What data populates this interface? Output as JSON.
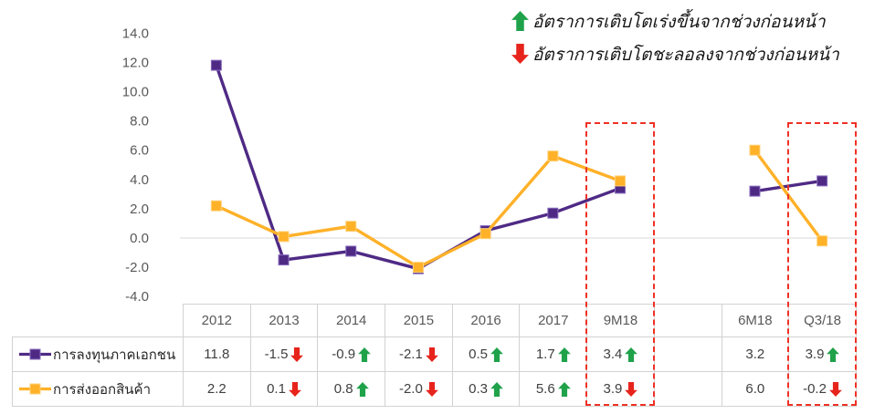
{
  "legend_flags": {
    "up_label": "อัตราการเติบโตเร่งขึ้นจากช่วงก่อนหน้า",
    "down_label": "อัตราการเติบโตชะลอลงจากช่วงก่อนหน้า"
  },
  "colors": {
    "purple": "#4F2A85",
    "purple_marker_border": "#8A6FBF",
    "yellow": "#FFB128",
    "yellow_marker_border": "#FFD279",
    "green": "#1FA24A",
    "red": "#E6241C",
    "highlight_box": "#EF3125",
    "gridline": "#D9D9D9",
    "table_border": "#D2D2D2",
    "axis_text": "#595959",
    "value_text": "#3F3F3F"
  },
  "chart_data": {
    "type": "line",
    "categories": [
      "2012",
      "2013",
      "2014",
      "2015",
      "2016",
      "2017",
      "9M18",
      "",
      "6M18",
      "Q3/18"
    ],
    "series": [
      {
        "name": "การลงทุนภาคเอกชน",
        "color": "#4F2A85",
        "marker_border": "#8A6FBF",
        "values": [
          11.8,
          -1.5,
          -0.9,
          -2.1,
          0.5,
          1.7,
          3.4,
          null,
          3.2,
          3.9
        ]
      },
      {
        "name": "การส่งออกสินค้า",
        "color": "#FFB128",
        "marker_border": "#FFD279",
        "values": [
          2.2,
          0.1,
          0.8,
          -2.0,
          0.3,
          5.6,
          3.9,
          null,
          6.0,
          -0.2
        ]
      }
    ],
    "ylim": [
      -4.0,
      14.0
    ],
    "ytick_step": 2.0,
    "ytick_labels": [
      "14.0",
      "12.0",
      "10.0",
      "8.0",
      "6.0",
      "4.0",
      "2.0",
      "0.0",
      "-2.0",
      "-4.0"
    ],
    "grid": "zero-line-only",
    "highlight_columns": [
      "9M18",
      "Q3/18"
    ],
    "legend_position": "table-left"
  },
  "table": {
    "columns": [
      "2012",
      "2013",
      "2014",
      "2015",
      "2016",
      "2017",
      "9M18",
      "",
      "6M18",
      "Q3/18"
    ],
    "rows": [
      {
        "label": "การลงทุนภาคเอกชน",
        "cells": [
          {
            "value": "11.8",
            "arrow": null
          },
          {
            "value": "-1.5",
            "arrow": "down"
          },
          {
            "value": "-0.9",
            "arrow": "up"
          },
          {
            "value": "-2.1",
            "arrow": "down"
          },
          {
            "value": "0.5",
            "arrow": "up"
          },
          {
            "value": "1.7",
            "arrow": "up"
          },
          {
            "value": "3.4",
            "arrow": "up"
          },
          {
            "value": "",
            "arrow": null
          },
          {
            "value": "3.2",
            "arrow": null
          },
          {
            "value": "3.9",
            "arrow": "up"
          }
        ]
      },
      {
        "label": "การส่งออกสินค้า",
        "cells": [
          {
            "value": "2.2",
            "arrow": null
          },
          {
            "value": "0.1",
            "arrow": "down"
          },
          {
            "value": "0.8",
            "arrow": "up"
          },
          {
            "value": "-2.0",
            "arrow": "down"
          },
          {
            "value": "0.3",
            "arrow": "up"
          },
          {
            "value": "5.6",
            "arrow": "up"
          },
          {
            "value": "3.9",
            "arrow": "down"
          },
          {
            "value": "",
            "arrow": null
          },
          {
            "value": "6.0",
            "arrow": null
          },
          {
            "value": "-0.2",
            "arrow": "down"
          }
        ]
      }
    ]
  }
}
